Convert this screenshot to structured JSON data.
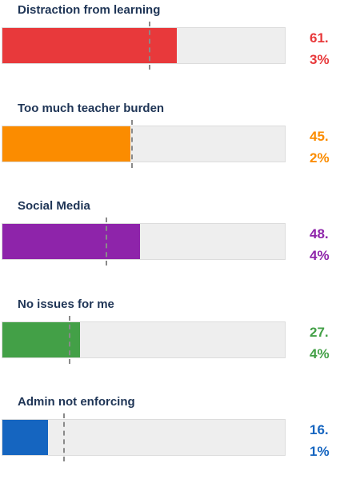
{
  "chart_data": {
    "type": "bar",
    "categories": [
      "Distraction from learning",
      "Too much teacher burden",
      "Social Media",
      "No issues for me",
      "Admin not enforcing"
    ],
    "values": [
      61.3,
      45.2,
      48.4,
      27.4,
      16.1
    ],
    "value_labels": [
      "61.3%",
      "45.2%",
      "48.4%",
      "27.4%",
      "16.1%"
    ],
    "colors": [
      "#e8393b",
      "#fb8c00",
      "#8e24aa",
      "#43a047",
      "#1565c0"
    ],
    "markers": [
      52,
      46,
      37,
      24,
      22
    ],
    "xlim": [
      0,
      100
    ]
  }
}
